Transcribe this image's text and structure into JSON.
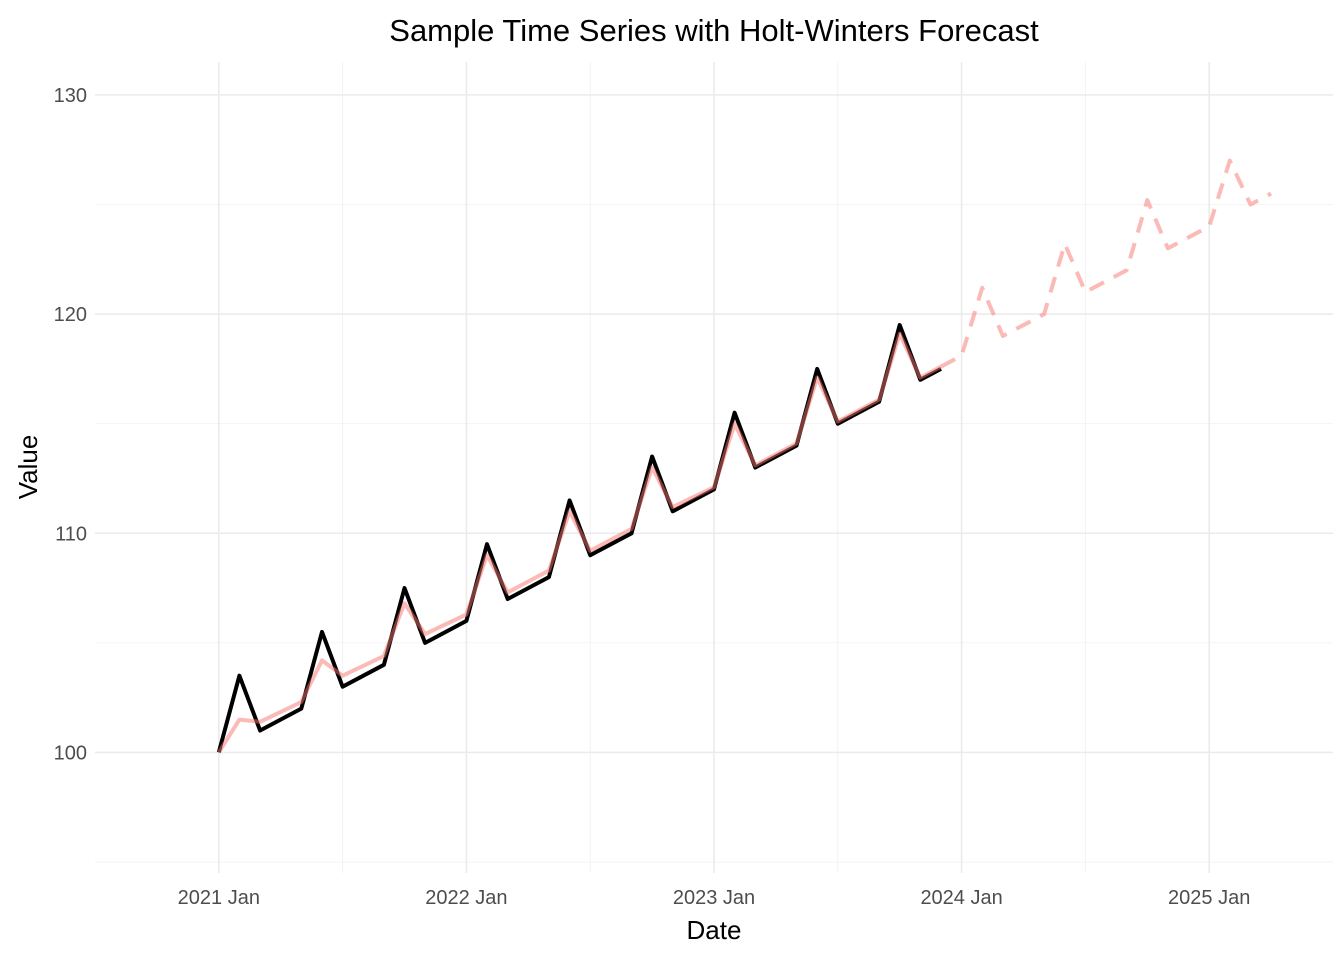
{
  "chart_data": {
    "type": "line",
    "title": "Sample Time Series with Holt-Winters Forecast",
    "xlabel": "Date",
    "ylabel": "Value",
    "x_axis": {
      "type": "date",
      "range": [
        "2020-07",
        "2025-07"
      ],
      "ticks": [
        "2021-01",
        "2022-01",
        "2023-01",
        "2024-01",
        "2025-01"
      ],
      "tick_labels": [
        "2021 Jan",
        "2022 Jan",
        "2023 Jan",
        "2024 Jan",
        "2025 Jan"
      ]
    },
    "y_axis": {
      "range": [
        94.5,
        131.5
      ],
      "ticks": [
        100,
        110,
        120,
        130
      ],
      "tick_labels": [
        "100",
        "110",
        "120",
        "130"
      ]
    },
    "grid": true,
    "legend": "none",
    "series": [
      {
        "role": "actual",
        "color": "#000000",
        "style": "solid",
        "x": [
          "2021-01",
          "2021-04",
          "2021-07",
          "2021-10",
          "2022-01",
          "2022-04",
          "2022-07",
          "2022-10",
          "2023-01",
          "2023-04",
          "2023-07",
          "2023-10",
          "2023-12"
        ],
        "points": [
          [
            "2021-01",
            100
          ],
          [
            "2021-02",
            103.5
          ],
          [
            "2021-03",
            101
          ],
          [
            "2021-05",
            102
          ],
          [
            "2021-06",
            105.5
          ],
          [
            "2021-07",
            103
          ],
          [
            "2021-09",
            104
          ],
          [
            "2021-10",
            107.5
          ],
          [
            "2021-11",
            105
          ],
          [
            "2022-01",
            106
          ],
          [
            "2022-02",
            109.5
          ],
          [
            "2022-03",
            107
          ],
          [
            "2022-05",
            108
          ],
          [
            "2022-06",
            111.5
          ],
          [
            "2022-07",
            109
          ],
          [
            "2022-09",
            110
          ],
          [
            "2022-10",
            113.5
          ],
          [
            "2022-11",
            111
          ],
          [
            "2023-01",
            112
          ],
          [
            "2023-02",
            115.5
          ],
          [
            "2023-03",
            113
          ],
          [
            "2023-05",
            114
          ],
          [
            "2023-06",
            117.5
          ],
          [
            "2023-07",
            115
          ],
          [
            "2023-09",
            116
          ],
          [
            "2023-10",
            119.5
          ],
          [
            "2023-11",
            117
          ],
          [
            "2023-12",
            117.5
          ]
        ]
      },
      {
        "role": "fitted",
        "color": "#f8766d",
        "style": "solid",
        "points": [
          [
            "2021-01",
            100
          ],
          [
            "2021-02",
            101.5
          ],
          [
            "2021-03",
            101.4
          ],
          [
            "2021-05",
            102.3
          ],
          [
            "2021-06",
            104.2
          ],
          [
            "2021-07",
            103.5
          ],
          [
            "2021-09",
            104.4
          ],
          [
            "2021-10",
            106.8
          ],
          [
            "2021-11",
            105.4
          ],
          [
            "2022-01",
            106.3
          ],
          [
            "2022-02",
            109
          ],
          [
            "2022-03",
            107.3
          ],
          [
            "2022-05",
            108.3
          ],
          [
            "2022-06",
            111
          ],
          [
            "2022-07",
            109.2
          ],
          [
            "2022-09",
            110.2
          ],
          [
            "2022-10",
            113
          ],
          [
            "2022-11",
            111.2
          ],
          [
            "2023-01",
            112.1
          ],
          [
            "2023-02",
            115
          ],
          [
            "2023-03",
            113.1
          ],
          [
            "2023-05",
            114.1
          ],
          [
            "2023-06",
            117.1
          ],
          [
            "2023-07",
            115.1
          ],
          [
            "2023-09",
            116.1
          ],
          [
            "2023-10",
            119.1
          ],
          [
            "2023-11",
            117.1
          ],
          [
            "2023-12",
            117.6
          ]
        ]
      },
      {
        "role": "forecast",
        "color": "#f8766d",
        "style": "dashed",
        "points": [
          [
            "2023-12",
            117.6
          ],
          [
            "2024-01",
            118.1
          ],
          [
            "2024-02",
            121.2
          ],
          [
            "2024-03",
            119
          ],
          [
            "2024-05",
            120
          ],
          [
            "2024-06",
            123.2
          ],
          [
            "2024-07",
            121
          ],
          [
            "2024-09",
            122
          ],
          [
            "2024-10",
            125.2
          ],
          [
            "2024-11",
            123
          ],
          [
            "2025-01",
            124
          ],
          [
            "2025-02",
            127
          ],
          [
            "2025-03",
            125
          ],
          [
            "2025-04",
            125.5
          ]
        ]
      }
    ]
  }
}
